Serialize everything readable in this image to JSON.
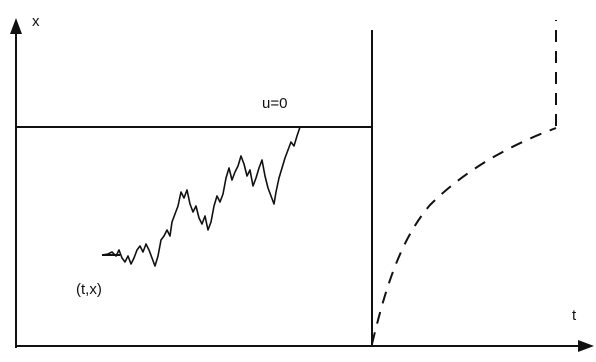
{
  "labels": {
    "x_axis": "t",
    "y_axis": "x",
    "start_point": "(t,x)",
    "boundary": "u=0"
  }
}
